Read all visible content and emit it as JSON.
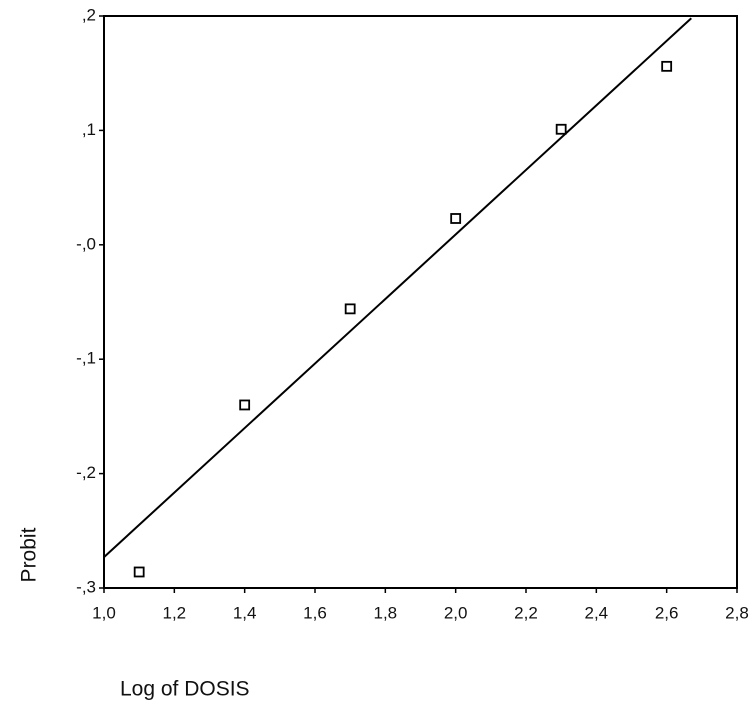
{
  "chart_data": {
    "type": "scatter",
    "x_label": "Log of DOSIS",
    "y_label": "Probit",
    "xlim": [
      1.0,
      2.8
    ],
    "ylim": [
      -0.3,
      0.2
    ],
    "xticks": [
      {
        "value": 1.0,
        "label": "1,0"
      },
      {
        "value": 1.2,
        "label": "1,2"
      },
      {
        "value": 1.4,
        "label": "1,4"
      },
      {
        "value": 1.6,
        "label": "1,6"
      },
      {
        "value": 1.8,
        "label": "1,8"
      },
      {
        "value": 2.0,
        "label": "2,0"
      },
      {
        "value": 2.2,
        "label": "2,2"
      },
      {
        "value": 2.4,
        "label": "2,4"
      },
      {
        "value": 2.6,
        "label": "2,6"
      },
      {
        "value": 2.8,
        "label": "2,8"
      }
    ],
    "yticks": [
      {
        "value": 0.2,
        "label": ",2"
      },
      {
        "value": 0.1,
        "label": ",1"
      },
      {
        "value": 0,
        "label": "-,0"
      },
      {
        "value": -0.1,
        "label": "-,1"
      },
      {
        "value": -0.2,
        "label": "-,2"
      },
      {
        "value": -0.3,
        "label": "-,3"
      }
    ],
    "series": [
      {
        "kind": "points",
        "color": "#000000",
        "x": [
          1.1,
          1.4,
          1.7,
          2.0,
          2.3,
          2.6
        ],
        "values": [
          -0.286,
          -0.14,
          -0.056,
          0.023,
          0.101,
          0.156
        ]
      },
      {
        "kind": "line",
        "color": "#000000",
        "x": [
          1.0,
          2.67
        ],
        "values": [
          -0.273,
          0.198
        ]
      }
    ]
  }
}
